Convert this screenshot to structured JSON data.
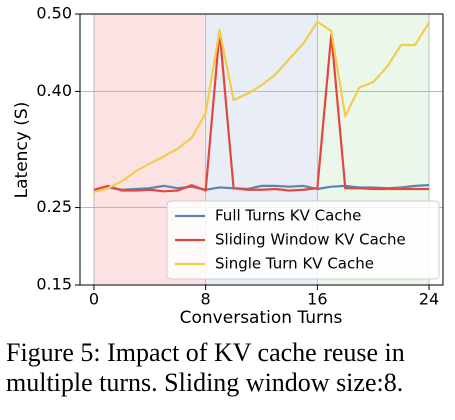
{
  "chart_data": {
    "type": "line",
    "ylabel": "Latency (S)",
    "xlabel": "Conversation Turns",
    "caption": "Figure 5: Impact of KV cache reuse in multiple turns. Sliding window size:8.",
    "x": [
      0,
      1,
      2,
      3,
      4,
      5,
      6,
      7,
      8,
      9,
      10,
      11,
      12,
      13,
      14,
      15,
      16,
      17,
      18,
      19,
      20,
      21,
      22,
      23,
      24
    ],
    "series": [
      {
        "name": "Full Turns KV Cache",
        "color": "#5b84b1",
        "values": [
          0.272,
          0.276,
          0.273,
          0.274,
          0.275,
          0.278,
          0.275,
          0.277,
          0.273,
          0.276,
          0.275,
          0.274,
          0.278,
          0.278,
          0.277,
          0.278,
          0.274,
          0.277,
          0.278,
          0.276,
          0.276,
          0.275,
          0.276,
          0.278,
          0.279
        ]
      },
      {
        "name": "Sliding Window KV Cache",
        "color": "#e2473f",
        "values": [
          0.273,
          0.278,
          0.272,
          0.272,
          0.273,
          0.271,
          0.272,
          0.279,
          0.272,
          0.478,
          0.275,
          0.273,
          0.273,
          0.274,
          0.272,
          0.273,
          0.275,
          0.474,
          0.275,
          0.275,
          0.274,
          0.274,
          0.274,
          0.274,
          0.274
        ]
      },
      {
        "name": "Single Turn KV Cache",
        "color": "#f2cd4d",
        "values": [
          0.27,
          0.275,
          0.284,
          0.297,
          0.307,
          0.316,
          0.326,
          0.34,
          0.372,
          0.479,
          0.389,
          0.397,
          0.408,
          0.422,
          0.442,
          0.462,
          0.49,
          0.478,
          0.368,
          0.405,
          0.412,
          0.432,
          0.46,
          0.46,
          0.489
        ]
      }
    ],
    "spans": [
      {
        "start": 0,
        "end": 8,
        "color": "#fbe3e3"
      },
      {
        "start": 8,
        "end": 16,
        "color": "#e9edf6"
      },
      {
        "start": 16,
        "end": 24,
        "color": "#ebf7ea"
      }
    ],
    "xlim": [
      -1,
      25
    ],
    "xticks": [
      0,
      8,
      16,
      24
    ],
    "ylim": [
      0.15,
      0.5
    ],
    "yticks": [
      0.15,
      0.25,
      {
        "value": 0.4,
        "label": "0.40"
      },
      {
        "value": 0.5,
        "label": "0.50"
      }
    ],
    "grid": true,
    "legend": "lower right"
  }
}
